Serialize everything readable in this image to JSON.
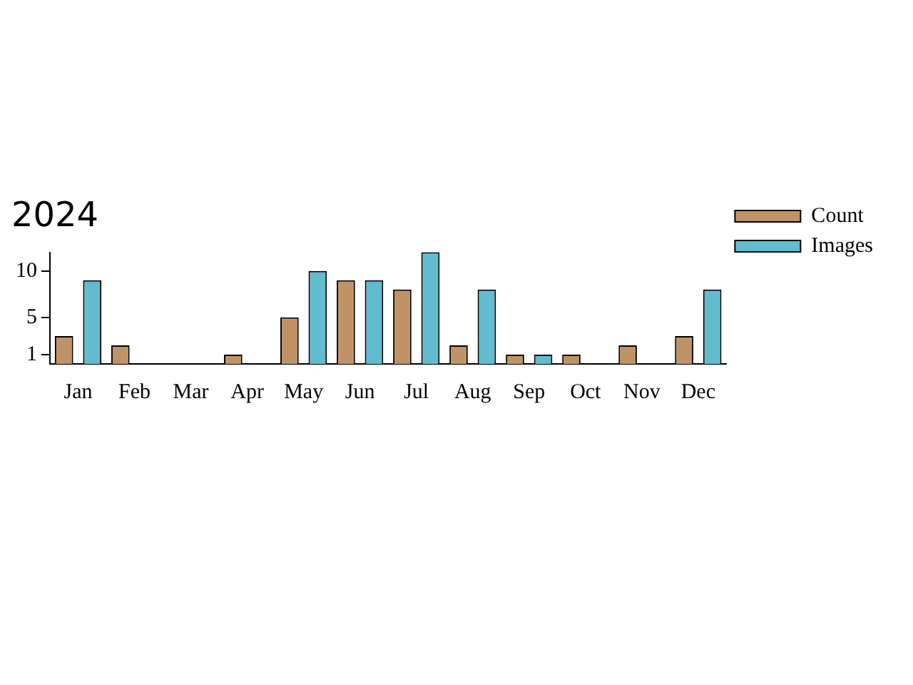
{
  "chart_data": {
    "type": "bar",
    "title": "2024",
    "categories": [
      "Jan",
      "Feb",
      "Mar",
      "Apr",
      "May",
      "Jun",
      "Jul",
      "Aug",
      "Sep",
      "Oct",
      "Nov",
      "Dec"
    ],
    "series": [
      {
        "name": "Count",
        "color": "#c09366",
        "values": [
          3,
          2,
          0,
          1,
          5,
          9,
          8,
          2,
          1,
          1,
          2,
          3
        ]
      },
      {
        "name": "Images",
        "color": "#62bccf",
        "values": [
          9,
          0,
          0,
          0,
          10,
          9,
          12,
          8,
          1,
          0,
          0,
          8
        ]
      }
    ],
    "ylim": [
      0,
      12
    ],
    "yticks": [
      1,
      5,
      10
    ],
    "grid": false,
    "legend": "right"
  }
}
